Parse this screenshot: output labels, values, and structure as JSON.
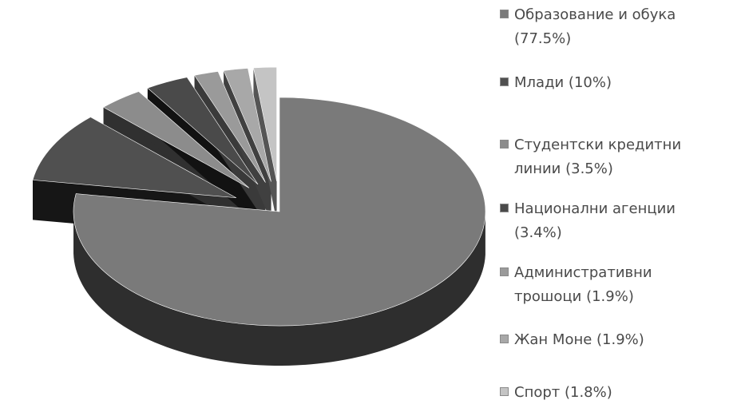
{
  "chart_data": {
    "type": "pie",
    "variant": "3d-exploded",
    "title": "",
    "slices": [
      {
        "label": "Образование и обука",
        "value": 77.5,
        "legend_lines": [
          "Образование и обука",
          "(77.5%)"
        ],
        "color": "#7a7a7a",
        "side_color": "#2e2e2e"
      },
      {
        "label": "Млади",
        "value": 10,
        "legend_lines": [
          "Млади (10%)"
        ],
        "color": "#505050",
        "side_color": "#161616"
      },
      {
        "label": "Студентски кредитни линии",
        "value": 3.5,
        "legend_lines": [
          "Студентски кредитни",
          "линии (3.5%)"
        ],
        "color": "#8c8c8c",
        "side_color": "#303030"
      },
      {
        "label": "Национални агенции",
        "value": 3.4,
        "legend_lines": [
          "Национални агенции",
          "(3.4%)"
        ],
        "color": "#4a4a4a",
        "side_color": "#121212"
      },
      {
        "label": "Административни трошоци",
        "value": 1.9,
        "legend_lines": [
          "Административни",
          "трошоци (1.9%)"
        ],
        "color": "#9a9a9a",
        "side_color": "#3a3a3a"
      },
      {
        "label": "Жан Моне",
        "value": 1.9,
        "legend_lines": [
          "Жан Моне (1.9%)"
        ],
        "color": "#a8a8a8",
        "side_color": "#404040"
      },
      {
        "label": "Спорт",
        "value": 1.8,
        "legend_lines": [
          "Спорт (1.8%)"
        ],
        "color": "#c4c4c4",
        "side_color": "#555555"
      }
    ],
    "legend_position": "right",
    "exploded": true
  }
}
